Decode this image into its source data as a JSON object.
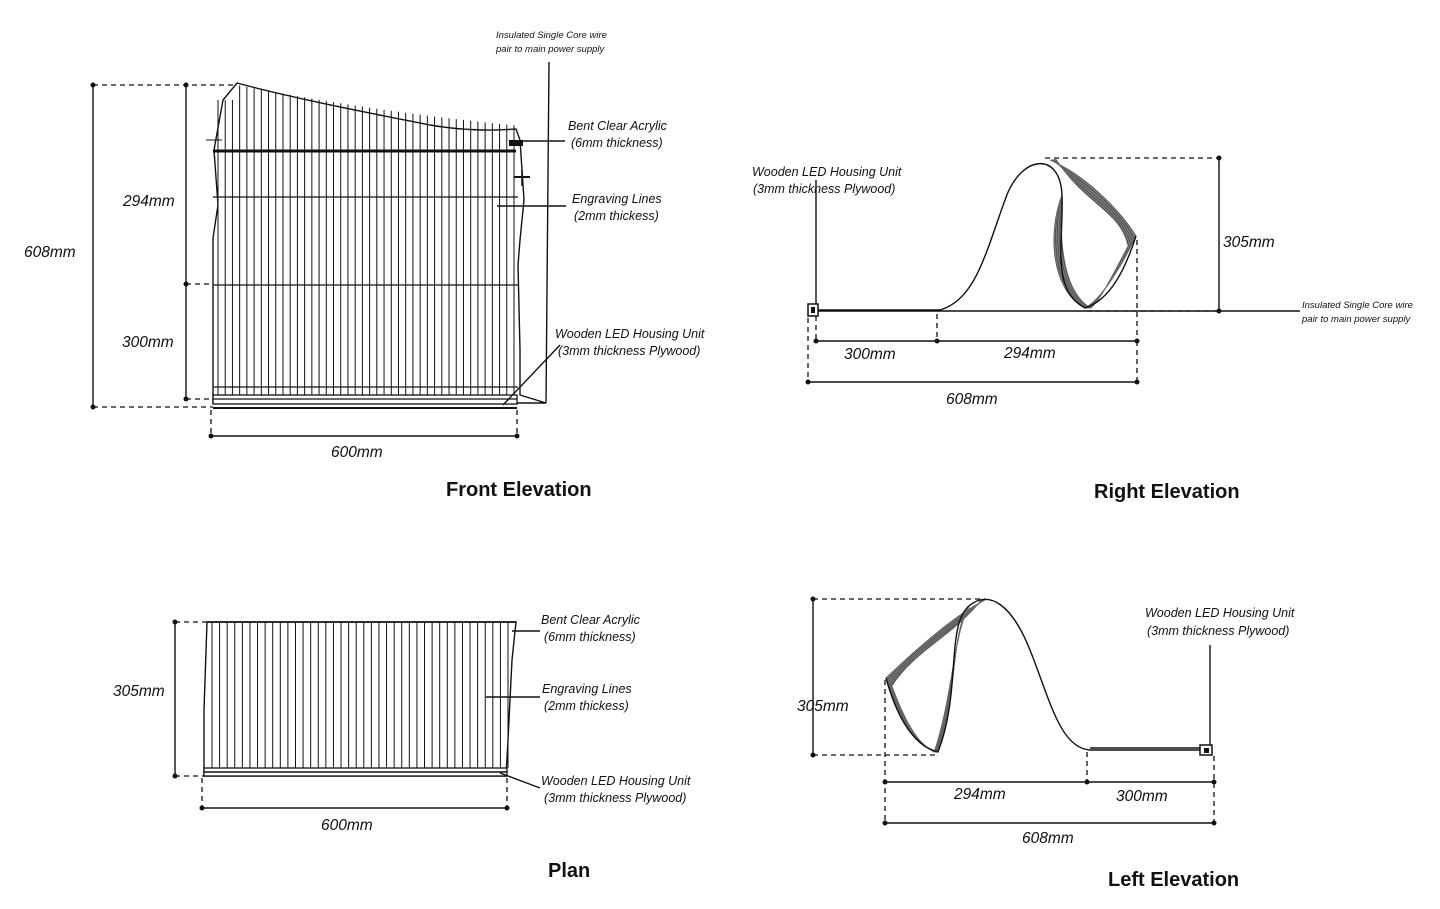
{
  "front_elevation": {
    "title": "Front Elevation",
    "dims": {
      "total_height": "608mm",
      "upper_height": "294mm",
      "lower_height": "300mm",
      "width": "600mm"
    },
    "labels": {
      "wire_line1": "Insulated Single Core wire",
      "wire_line2": "pair to main power supply",
      "acrylic_line1": "Bent Clear Acrylic",
      "acrylic_line2": "(6mm thickness)",
      "engraving_line1": "Engraving Lines",
      "engraving_line2": "(2mm thickess)",
      "housing_line1": "Wooden LED Housing Unit",
      "housing_line2": "(3mm thickness Plywood)"
    }
  },
  "right_elevation": {
    "title": "Right Elevation",
    "dims": {
      "height": "305mm",
      "left_span": "300mm",
      "right_span": "294mm",
      "total": "608mm"
    },
    "labels": {
      "housing_line1": "Wooden LED Housing Unit",
      "housing_line2": "(3mm thickness Plywood)",
      "wire_line1": "Insulated Single Core wire",
      "wire_line2": "pair to main power supply"
    }
  },
  "plan": {
    "title": "Plan",
    "dims": {
      "height": "305mm",
      "width": "600mm"
    },
    "labels": {
      "acrylic_line1": "Bent Clear Acrylic",
      "acrylic_line2": "(6mm thickness)",
      "engraving_line1": "Engraving Lines",
      "engraving_line2": "(2mm thickess)",
      "housing_line1": "Wooden LED Housing Unit",
      "housing_line2": "(3mm thickness Plywood)"
    }
  },
  "left_elevation": {
    "title": "Left Elevation",
    "dims": {
      "height": "305mm",
      "left_span": "294mm",
      "right_span": "300mm",
      "total": "608mm"
    },
    "labels": {
      "housing_line1": "Wooden LED Housing Unit",
      "housing_line2": "(3mm thickness Plywood)"
    }
  }
}
